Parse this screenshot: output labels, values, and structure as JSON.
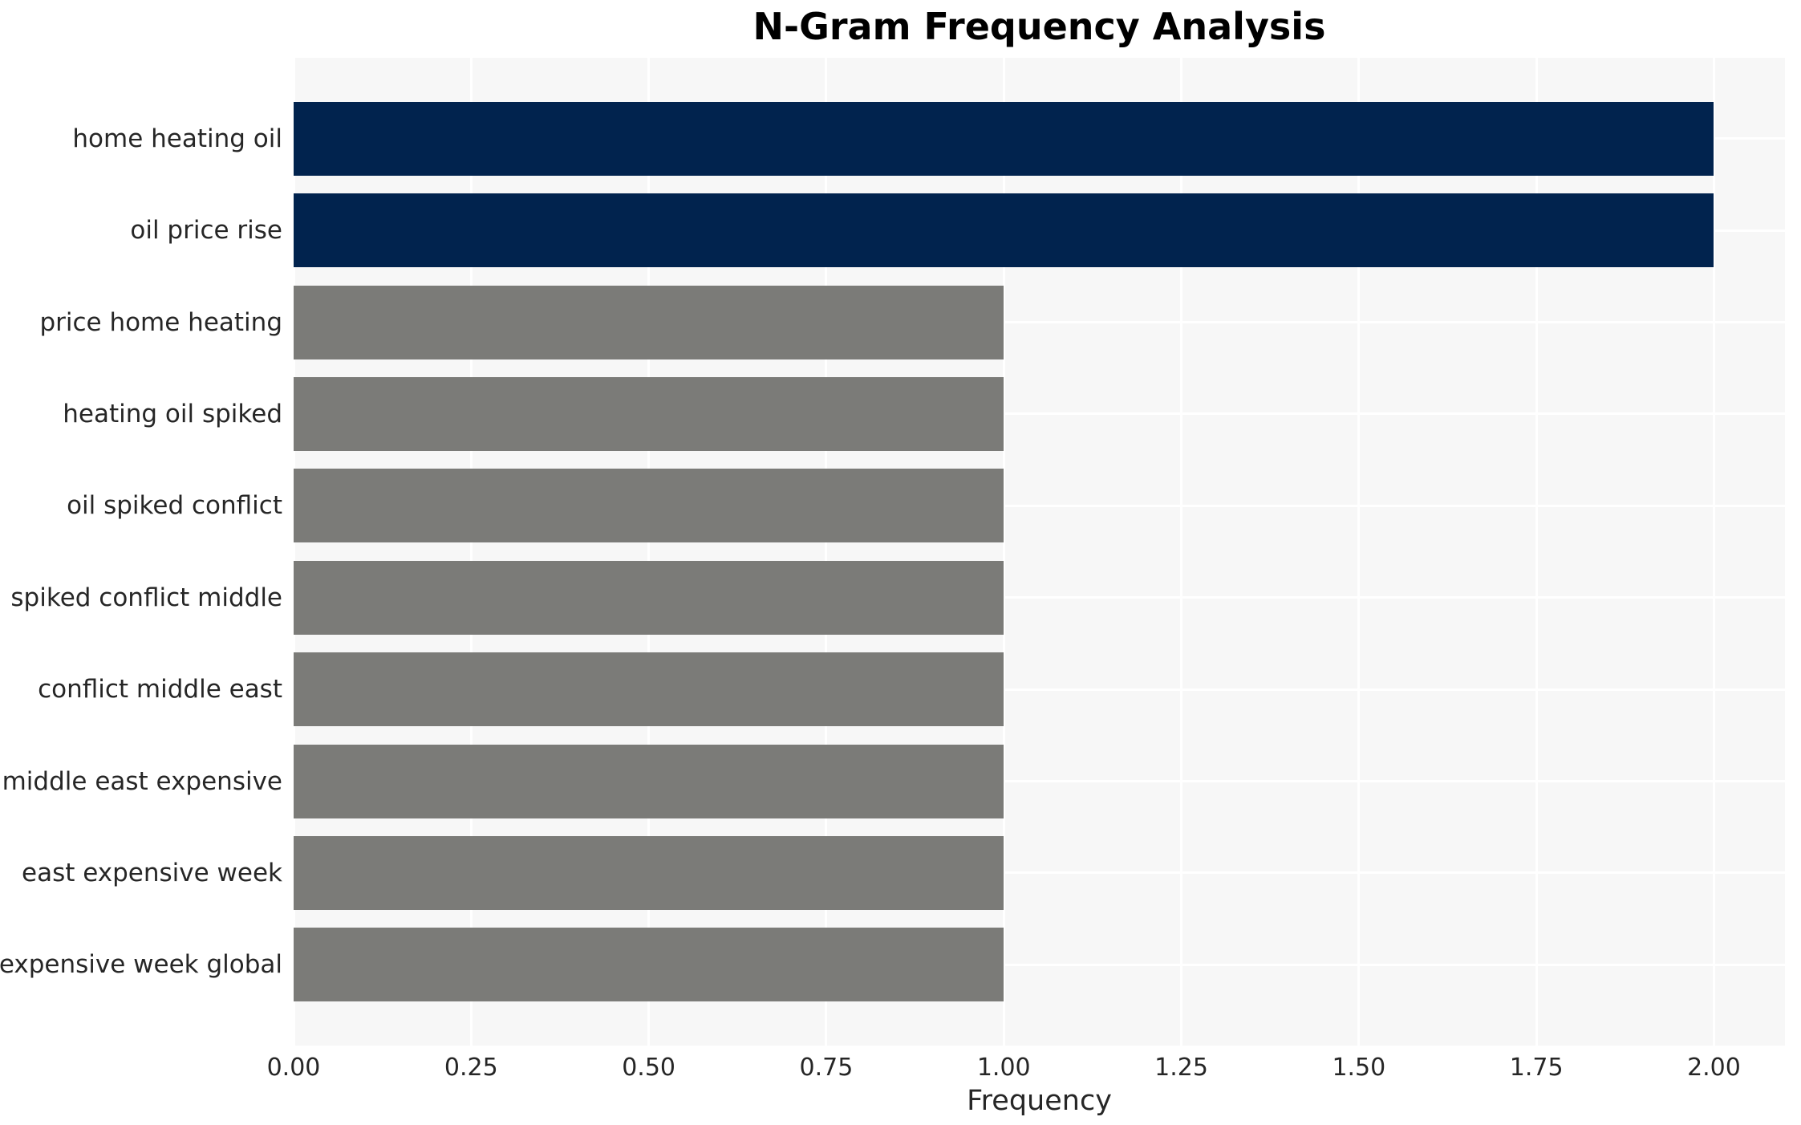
{
  "chart_data": {
    "type": "bar",
    "orientation": "horizontal",
    "title": "N-Gram Frequency Analysis",
    "xlabel": "Frequency",
    "ylabel": "",
    "categories": [
      "home heating oil",
      "oil price rise",
      "price home heating",
      "heating oil spiked",
      "oil spiked conflict",
      "spiked conflict middle",
      "conflict middle east",
      "middle east expensive",
      "east expensive week",
      "expensive week global"
    ],
    "values": [
      2,
      2,
      1,
      1,
      1,
      1,
      1,
      1,
      1,
      1
    ],
    "bar_colors": [
      "#01234e",
      "#01234e",
      "#7b7b78",
      "#7b7b78",
      "#7b7b78",
      "#7b7b78",
      "#7b7b78",
      "#7b7b78",
      "#7b7b78",
      "#7b7b78"
    ],
    "highlight_color": "#01234e",
    "default_color": "#7b7b78",
    "x_tick_labels": [
      "0.00",
      "0.25",
      "0.50",
      "0.75",
      "1.00",
      "1.25",
      "1.50",
      "1.75",
      "2.00"
    ],
    "x_tick_values": [
      0,
      0.25,
      0.5,
      0.75,
      1.0,
      1.25,
      1.5,
      1.75,
      2.0
    ],
    "xlim": [
      0,
      2.1
    ],
    "grid": true,
    "grid_color": "#ffffff",
    "plot_background": "#f7f7f7",
    "legend": null
  }
}
